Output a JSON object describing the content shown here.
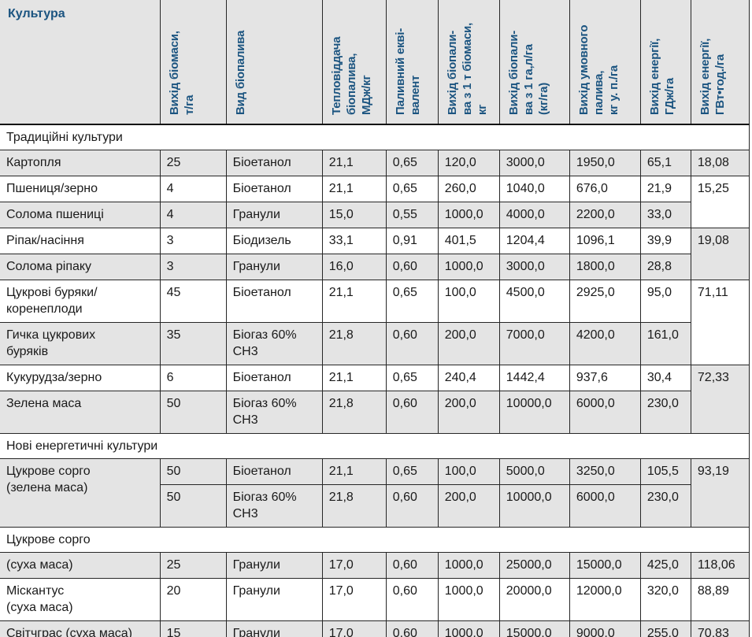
{
  "colors": {
    "header_text": "#1b5480",
    "header_bg": "#e4e4e4",
    "row_gray": "#e4e4e4",
    "row_white": "#ffffff",
    "grid_line": "#262626"
  },
  "table": {
    "columns": [
      {
        "id": "crop",
        "label": "Культура",
        "orientation": "horizontal"
      },
      {
        "id": "biomass-yield",
        "label": "Вихід біомаси,\nт/га",
        "orientation": "vertical"
      },
      {
        "id": "biofuel-type",
        "label": "Вид біопалива",
        "orientation": "vertical"
      },
      {
        "id": "heat-output",
        "label": "Тепловіддача\nбіопалива,\nМДж/кг",
        "orientation": "vertical"
      },
      {
        "id": "fuel-equivalent",
        "label": "Паливний екві-\nвалент",
        "orientation": "vertical"
      },
      {
        "id": "yield-per-tonne",
        "label": "Вихід біопали-\nва з 1 т біомаси,\nкг",
        "orientation": "vertical"
      },
      {
        "id": "yield-per-ha",
        "label": "Вихід біопали-\nва з 1 га,л/га\n(кг/га)",
        "orientation": "vertical"
      },
      {
        "id": "conditional-fuel",
        "label": "Вихід умовного\nпалива,\nкг у. п./га",
        "orientation": "vertical"
      },
      {
        "id": "energy-gj",
        "label": "Вихід енергії,\nГДж/га",
        "orientation": "vertical"
      },
      {
        "id": "energy-gwh",
        "label": "Вихід енергії,\nГВт•год./га",
        "orientation": "vertical"
      }
    ],
    "body": [
      {
        "type": "section",
        "title": "Традиційні культури"
      },
      {
        "type": "row",
        "shade": "gray",
        "cells": [
          {
            "t": "Картопля"
          },
          {
            "t": "25"
          },
          {
            "t": "Біоетанол"
          },
          {
            "t": "21,1"
          },
          {
            "t": "0,65"
          },
          {
            "t": "120,0"
          },
          {
            "t": "3000,0"
          },
          {
            "t": "1950,0"
          },
          {
            "t": "65,1"
          },
          {
            "t": "18,08",
            "shade": "gray"
          }
        ]
      },
      {
        "type": "row",
        "shade": "white",
        "cells": [
          {
            "t": "Пшениця/зерно"
          },
          {
            "t": "4"
          },
          {
            "t": "Біоетанол"
          },
          {
            "t": "21,1"
          },
          {
            "t": "0,65"
          },
          {
            "t": "260,0"
          },
          {
            "t": "1040,0"
          },
          {
            "t": "676,0"
          },
          {
            "t": "21,9"
          },
          {
            "t": "15,25",
            "rowspan": 2,
            "shade": "white"
          }
        ]
      },
      {
        "type": "row",
        "shade": "gray",
        "cells": [
          {
            "t": "Солома пшениці"
          },
          {
            "t": "4"
          },
          {
            "t": "Гранули"
          },
          {
            "t": "15,0"
          },
          {
            "t": "0,55"
          },
          {
            "t": "1000,0"
          },
          {
            "t": "4000,0"
          },
          {
            "t": "2200,0"
          },
          {
            "t": "33,0"
          }
        ]
      },
      {
        "type": "row",
        "shade": "white",
        "cells": [
          {
            "t": "Ріпак/насіння"
          },
          {
            "t": "3"
          },
          {
            "t": "Біодизель"
          },
          {
            "t": "33,1"
          },
          {
            "t": "0,91"
          },
          {
            "t": "401,5"
          },
          {
            "t": "1204,4"
          },
          {
            "t": "1096,1"
          },
          {
            "t": "39,9"
          },
          {
            "t": "19,08",
            "rowspan": 2,
            "shade": "gray"
          }
        ]
      },
      {
        "type": "row",
        "shade": "gray",
        "cells": [
          {
            "t": "Солома ріпаку"
          },
          {
            "t": "3"
          },
          {
            "t": "Гранули"
          },
          {
            "t": "16,0"
          },
          {
            "t": "0,60"
          },
          {
            "t": "1000,0"
          },
          {
            "t": "3000,0"
          },
          {
            "t": "1800,0"
          },
          {
            "t": "28,8"
          }
        ]
      },
      {
        "type": "row",
        "shade": "white",
        "cells": [
          {
            "t": "Цукрові буряки/\nкоренеплоди"
          },
          {
            "t": "45"
          },
          {
            "t": "Біоетанол"
          },
          {
            "t": "21,1"
          },
          {
            "t": "0,65"
          },
          {
            "t": "100,0"
          },
          {
            "t": "4500,0"
          },
          {
            "t": "2925,0"
          },
          {
            "t": "95,0"
          },
          {
            "t": "71,11",
            "rowspan": 2,
            "shade": "white"
          }
        ]
      },
      {
        "type": "row",
        "shade": "gray",
        "cells": [
          {
            "t": "Гичка цукрових\nбуряків"
          },
          {
            "t": "35"
          },
          {
            "t": "Біогаз 60%\nСН3"
          },
          {
            "t": "21,8"
          },
          {
            "t": "0,60"
          },
          {
            "t": "200,0"
          },
          {
            "t": "7000,0"
          },
          {
            "t": "4200,0"
          },
          {
            "t": "161,0"
          }
        ]
      },
      {
        "type": "row",
        "shade": "white",
        "cells": [
          {
            "t": "Кукурудза/зерно"
          },
          {
            "t": "6"
          },
          {
            "t": "Біоетанол"
          },
          {
            "t": "21,1"
          },
          {
            "t": "0,65"
          },
          {
            "t": "240,4"
          },
          {
            "t": "1442,4"
          },
          {
            "t": "937,6"
          },
          {
            "t": "30,4"
          },
          {
            "t": "72,33",
            "rowspan": 2,
            "shade": "gray"
          }
        ]
      },
      {
        "type": "row",
        "shade": "gray",
        "cells": [
          {
            "t": "Зелена маса"
          },
          {
            "t": "50"
          },
          {
            "t": "Біогаз 60%\nСН3"
          },
          {
            "t": "21,8"
          },
          {
            "t": "0,60"
          },
          {
            "t": "200,0"
          },
          {
            "t": "10000,0"
          },
          {
            "t": "6000,0"
          },
          {
            "t": "230,0"
          }
        ]
      },
      {
        "type": "section",
        "title": "Нові енергетичні культури"
      },
      {
        "type": "row",
        "shade": "gray",
        "cells": [
          {
            "t": "Цукрове сорго\n(зелена маса)",
            "rowspan": 2,
            "shade": "gray"
          },
          {
            "t": "50"
          },
          {
            "t": "Біоетанол"
          },
          {
            "t": "21,1"
          },
          {
            "t": "0,65"
          },
          {
            "t": "100,0"
          },
          {
            "t": "5000,0"
          },
          {
            "t": "3250,0"
          },
          {
            "t": "105,5"
          },
          {
            "t": "93,19",
            "rowspan": 2,
            "shade": "gray"
          }
        ]
      },
      {
        "type": "row",
        "shade": "gray",
        "cells": [
          {
            "t": "50"
          },
          {
            "t": "Біогаз 60%\nСН3"
          },
          {
            "t": "21,8"
          },
          {
            "t": "0,60"
          },
          {
            "t": "200,0"
          },
          {
            "t": "10000,0"
          },
          {
            "t": "6000,0"
          },
          {
            "t": "230,0"
          }
        ]
      },
      {
        "type": "section",
        "title": "Цукрове сорго"
      },
      {
        "type": "row",
        "shade": "gray",
        "cells": [
          {
            "t": "(суха маса)"
          },
          {
            "t": "25"
          },
          {
            "t": "Гранули"
          },
          {
            "t": "17,0"
          },
          {
            "t": "0,60"
          },
          {
            "t": "1000,0"
          },
          {
            "t": "25000,0"
          },
          {
            "t": "15000,0"
          },
          {
            "t": "425,0"
          },
          {
            "t": "118,06",
            "shade": "gray"
          }
        ]
      },
      {
        "type": "row",
        "shade": "white",
        "cells": [
          {
            "t": "Міскантус\n(суха маса)"
          },
          {
            "t": "20"
          },
          {
            "t": "Гранули"
          },
          {
            "t": "17,0"
          },
          {
            "t": "0,60"
          },
          {
            "t": "1000,0"
          },
          {
            "t": "20000,0"
          },
          {
            "t": "12000,0"
          },
          {
            "t": "320,0"
          },
          {
            "t": "88,89",
            "shade": "white"
          }
        ]
      },
      {
        "type": "row",
        "shade": "gray",
        "cells": [
          {
            "t": "Світчграс (суха маса)"
          },
          {
            "t": "15"
          },
          {
            "t": "Гранули"
          },
          {
            "t": "17,0"
          },
          {
            "t": "0,60"
          },
          {
            "t": "1000,0"
          },
          {
            "t": "15000,0"
          },
          {
            "t": "9000,0"
          },
          {
            "t": "255,0"
          },
          {
            "t": "70,83",
            "shade": "gray"
          }
        ]
      }
    ]
  }
}
